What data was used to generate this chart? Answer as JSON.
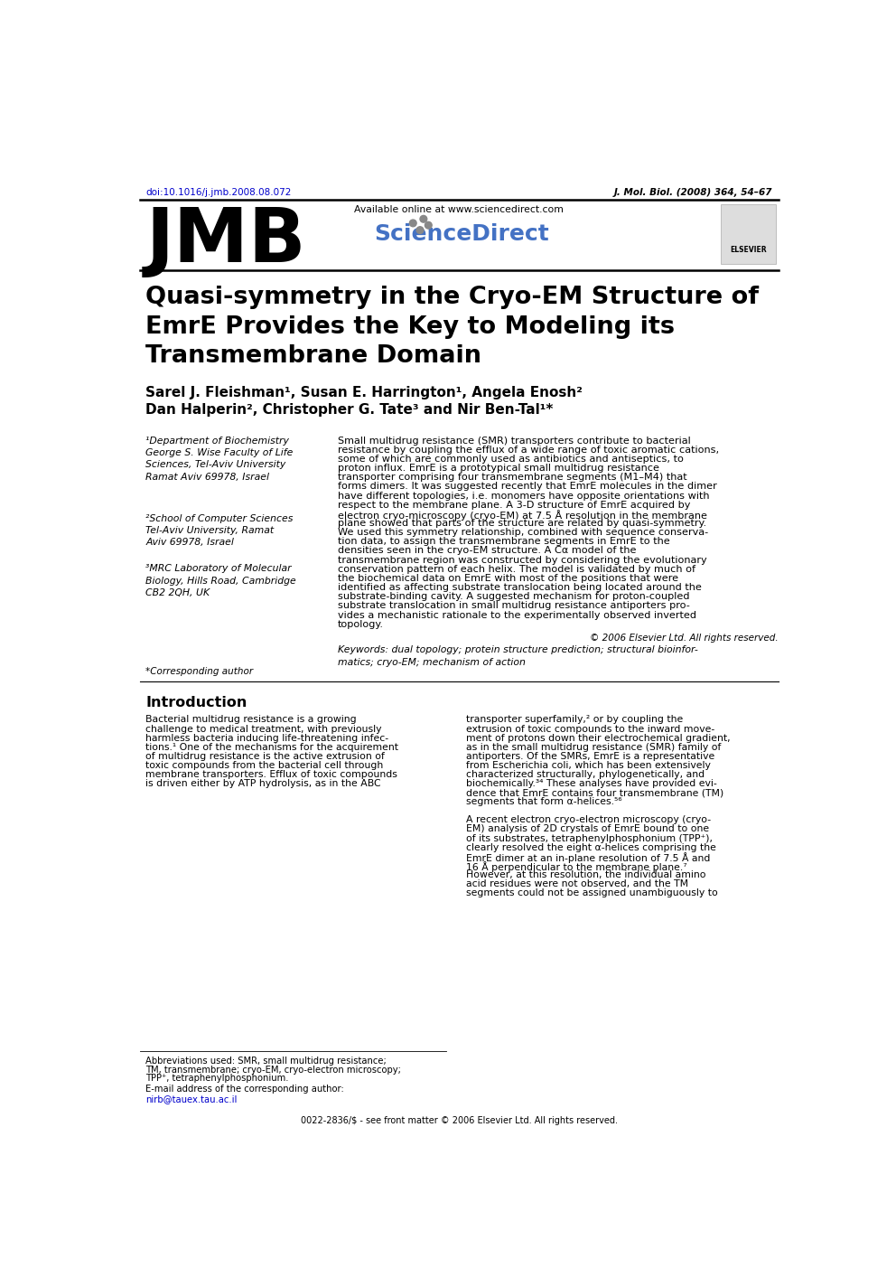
{
  "doi": "doi:10.1016/j.jmb.2008.08.072",
  "journal_ref": "J. Mol. Biol. (2008) 364, 54–67",
  "journal_name": "JMB",
  "available_online": "Available online at www.sciencedirect.com",
  "sciencedirect": "ScienceDirect",
  "title": "Quasi-symmetry in the Cryo-EM Structure of\nEmrE Provides the Key to Modeling its\nTransmembrane Domain",
  "authors_line1": "Sarel J. Fleishman¹, Susan E. Harrington¹, Angela Enosh²",
  "authors_line2": "Dan Halperin², Christopher G. Tate³ and Nir Ben-Tal¹*",
  "affil1": "¹Department of Biochemistry\nGeorge S. Wise Faculty of Life\nSciences, Tel-Aviv University\nRamat Aviv 69978, Israel",
  "affil2": "²School of Computer Sciences\nTel-Aviv University, Ramat\nAviv 69978, Israel",
  "affil3": "³MRC Laboratory of Molecular\nBiology, Hills Road, Cambridge\nCB2 2QH, UK",
  "corresponding": "*Corresponding author",
  "email_label": "E-mail address of the corresponding author:",
  "email": "nirb@tauex.tau.ac.il",
  "abstract_lines": [
    "Small multidrug resistance (SMR) transporters contribute to bacterial",
    "resistance by coupling the efflux of a wide range of toxic aromatic cations,",
    "some of which are commonly used as antibiotics and antiseptics, to",
    "proton influx. EmrE is a prototypical small multidrug resistance",
    "transporter comprising four transmembrane segments (M1–M4) that",
    "forms dimers. It was suggested recently that EmrE molecules in the dimer",
    "have different topologies, i.e. monomers have opposite orientations with",
    "respect to the membrane plane. A 3-D structure of EmrE acquired by",
    "electron cryo-microscopy (cryo-EM) at 7.5 Å resolution in the membrane",
    "plane showed that parts of the structure are related by quasi-symmetry.",
    "We used this symmetry relationship, combined with sequence conserva-",
    "tion data, to assign the transmembrane segments in EmrE to the",
    "densities seen in the cryo-EM structure. A Cα model of the",
    "transmembrane region was constructed by considering the evolutionary",
    "conservation pattern of each helix. The model is validated by much of",
    "the biochemical data on EmrE with most of the positions that were",
    "identified as affecting substrate translocation being located around the",
    "substrate-binding cavity. A suggested mechanism for proton-coupled",
    "substrate translocation in small multidrug resistance antiporters pro-",
    "vides a mechanistic rationale to the experimentally observed inverted",
    "topology."
  ],
  "copyright": "© 2006 Elsevier Ltd. All rights reserved.",
  "keywords": "Keywords: dual topology; protein structure prediction; structural bioinfor-\nmatics; cryo-EM; mechanism of action",
  "intro_title": "Introduction",
  "intro_left_lines": [
    "Bacterial multidrug resistance is a growing",
    "challenge to medical treatment, with previously",
    "harmless bacteria inducing life-threatening infec-",
    "tions.¹ One of the mechanisms for the acquirement",
    "of multidrug resistance is the active extrusion of",
    "toxic compounds from the bacterial cell through",
    "membrane transporters. Efflux of toxic compounds",
    "is driven either by ATP hydrolysis, as in the ABC"
  ],
  "intro_right_lines": [
    "transporter superfamily,² or by coupling the",
    "extrusion of toxic compounds to the inward move-",
    "ment of protons down their electrochemical gradient,",
    "as in the small multidrug resistance (SMR) family of",
    "antiporters. Of the SMRs, EmrE is a representative",
    "from Escherichia coli, which has been extensively",
    "characterized structurally, phylogenetically, and",
    "biochemically.³⁴ These analyses have provided evi-",
    "dence that EmrE contains four transmembrane (TM)",
    "segments that form α-helices.⁵⁶",
    "",
    "A recent electron cryo-electron microscopy (cryo-",
    "EM) analysis of 2D crystals of EmrE bound to one",
    "of its substrates, tetraphenylphosphonium (TPP⁺),",
    "clearly resolved the eight α-helices comprising the",
    "EmrE dimer at an in-plane resolution of 7.5 Å and",
    "16 Å perpendicular to the membrane plane.⁷",
    "However, at this resolution, the individual amino",
    "acid residues were not observed, and the TM",
    "segments could not be assigned unambiguously to"
  ],
  "abbreviations_lines": [
    "Abbreviations used: SMR, small multidrug resistance;",
    "TM, transmembrane; cryo-EM, cryo-electron microscopy;",
    "TPP⁺, tetraphenylphosphonium."
  ],
  "copyright_bottom": "0022-2836/$ - see front matter © 2006 Elsevier Ltd. All rights reserved.",
  "bg_color": "#ffffff",
  "text_color": "#000000",
  "doi_color": "#0000cc",
  "link_color": "#0000cc"
}
